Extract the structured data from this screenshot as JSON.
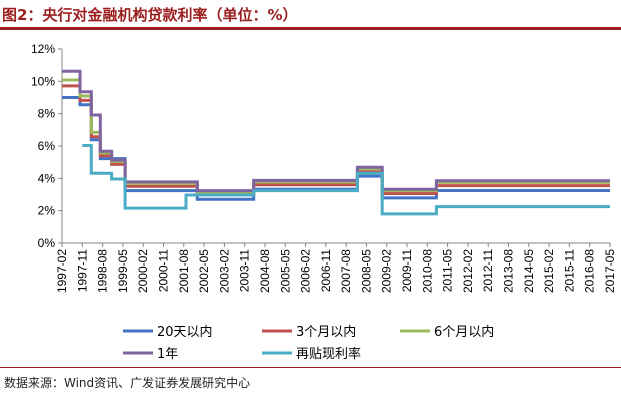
{
  "title": "图2：央行对金融机构贷款利率（单位：%）",
  "source": "数据来源：Wind资讯、广发证券发展研究中心",
  "chart_data": {
    "type": "line",
    "title": "",
    "xlabel": "",
    "ylabel": "",
    "ylim": [
      0,
      12
    ],
    "yticks": [
      "0%",
      "2%",
      "4%",
      "6%",
      "8%",
      "10%",
      "12%"
    ],
    "x_tick_labels": [
      "1997-02",
      "1997-11",
      "1998-08",
      "1999-05",
      "2000-02",
      "2000-11",
      "2001-08",
      "2002-05",
      "2003-02",
      "2003-11",
      "2004-08",
      "2005-05",
      "2006-02",
      "2006-11",
      "2007-08",
      "2008-05",
      "2009-02",
      "2009-11",
      "2010-08",
      "2011-05",
      "2012-02",
      "2012-11",
      "2013-08",
      "2014-05",
      "2015-02",
      "2015-11",
      "2016-08",
      "2017-05"
    ],
    "x_range": [
      "1997-02",
      "2017-05"
    ],
    "grid": false,
    "legend_position": "bottom",
    "colors": {
      "20天以内": "#4472c4",
      "3个月以内": "#c0504d",
      "6个月以内": "#9bbb59",
      "1年": "#8064a2",
      "再贴现利率": "#4bacc6"
    },
    "series": [
      {
        "name": "20天以内",
        "points": [
          [
            "1997-02",
            9.0
          ],
          [
            "1997-10",
            9.0
          ],
          [
            "1997-10",
            8.55
          ],
          [
            "1998-03",
            8.55
          ],
          [
            "1998-03",
            6.39
          ],
          [
            "1998-07",
            6.39
          ],
          [
            "1998-07",
            5.22
          ],
          [
            "1999-06",
            5.22
          ],
          [
            "1999-06",
            3.24
          ],
          [
            "2001-08",
            3.24
          ],
          [
            "2002-02",
            3.24
          ],
          [
            "2002-02",
            2.7
          ],
          [
            "2003-12",
            2.7
          ],
          [
            "2004-03",
            2.7
          ],
          [
            "2004-03",
            3.33
          ],
          [
            "2008-01",
            3.33
          ],
          [
            "2008-01",
            4.14
          ],
          [
            "2008-11",
            4.14
          ],
          [
            "2008-12",
            4.14
          ],
          [
            "2008-12",
            2.79
          ],
          [
            "2010-12",
            2.79
          ],
          [
            "2010-12",
            3.25
          ],
          [
            "2017-05",
            3.25
          ]
        ]
      },
      {
        "name": "3个月以内",
        "points": [
          [
            "1997-02",
            9.72
          ],
          [
            "1997-10",
            9.72
          ],
          [
            "1997-10",
            8.82
          ],
          [
            "1998-03",
            8.82
          ],
          [
            "1998-03",
            6.57
          ],
          [
            "1998-07",
            6.57
          ],
          [
            "1998-07",
            5.4
          ],
          [
            "1998-12",
            5.4
          ],
          [
            "1998-12",
            4.86
          ],
          [
            "1999-06",
            4.86
          ],
          [
            "1999-06",
            3.51
          ],
          [
            "2002-02",
            3.51
          ],
          [
            "2002-02",
            2.97
          ],
          [
            "2004-03",
            2.97
          ],
          [
            "2004-03",
            3.6
          ],
          [
            "2008-01",
            3.6
          ],
          [
            "2008-01",
            4.41
          ],
          [
            "2008-12",
            4.41
          ],
          [
            "2008-12",
            3.06
          ],
          [
            "2010-12",
            3.06
          ],
          [
            "2010-12",
            3.55
          ],
          [
            "2017-05",
            3.55
          ]
        ]
      },
      {
        "name": "6个月以内",
        "points": [
          [
            "1997-02",
            10.08
          ],
          [
            "1997-10",
            10.08
          ],
          [
            "1997-10",
            9.09
          ],
          [
            "1998-03",
            9.09
          ],
          [
            "1998-03",
            6.84
          ],
          [
            "1998-07",
            6.84
          ],
          [
            "1998-07",
            5.58
          ],
          [
            "1998-12",
            5.58
          ],
          [
            "1998-12",
            5.04
          ],
          [
            "1999-06",
            5.04
          ],
          [
            "1999-06",
            3.69
          ],
          [
            "2002-02",
            3.69
          ],
          [
            "2002-02",
            3.15
          ],
          [
            "2004-03",
            3.15
          ],
          [
            "2004-03",
            3.78
          ],
          [
            "2008-01",
            3.78
          ],
          [
            "2008-01",
            4.59
          ],
          [
            "2008-12",
            4.59
          ],
          [
            "2008-12",
            3.24
          ],
          [
            "2010-12",
            3.24
          ],
          [
            "2010-12",
            3.75
          ],
          [
            "2017-05",
            3.75
          ]
        ]
      },
      {
        "name": "1年",
        "points": [
          [
            "1997-02",
            10.62
          ],
          [
            "1997-10",
            10.62
          ],
          [
            "1997-10",
            9.36
          ],
          [
            "1998-03",
            9.36
          ],
          [
            "1998-03",
            7.92
          ],
          [
            "1998-07",
            7.92
          ],
          [
            "1998-07",
            5.67
          ],
          [
            "1998-12",
            5.67
          ],
          [
            "1998-12",
            5.13
          ],
          [
            "1999-06",
            5.13
          ],
          [
            "1999-06",
            3.78
          ],
          [
            "2002-02",
            3.78
          ],
          [
            "2002-02",
            3.24
          ],
          [
            "2004-03",
            3.24
          ],
          [
            "2004-03",
            3.87
          ],
          [
            "2008-01",
            3.87
          ],
          [
            "2008-01",
            4.68
          ],
          [
            "2008-12",
            4.68
          ],
          [
            "2008-12",
            3.33
          ],
          [
            "2010-12",
            3.33
          ],
          [
            "2010-12",
            3.85
          ],
          [
            "2017-05",
            3.85
          ]
        ]
      },
      {
        "name": "再贴现利率",
        "points": [
          [
            "1997-11",
            6.03
          ],
          [
            "1998-03",
            6.03
          ],
          [
            "1998-03",
            4.32
          ],
          [
            "1998-12",
            4.32
          ],
          [
            "1998-12",
            3.96
          ],
          [
            "1999-06",
            3.96
          ],
          [
            "1999-06",
            2.16
          ],
          [
            "2001-09",
            2.16
          ],
          [
            "2001-09",
            2.97
          ],
          [
            "2004-03",
            2.97
          ],
          [
            "2004-03",
            3.24
          ],
          [
            "2008-01",
            3.24
          ],
          [
            "2008-01",
            4.32
          ],
          [
            "2008-12",
            4.32
          ],
          [
            "2008-12",
            1.8
          ],
          [
            "2010-12",
            1.8
          ],
          [
            "2010-12",
            2.25
          ],
          [
            "2017-05",
            2.25
          ]
        ]
      }
    ]
  }
}
